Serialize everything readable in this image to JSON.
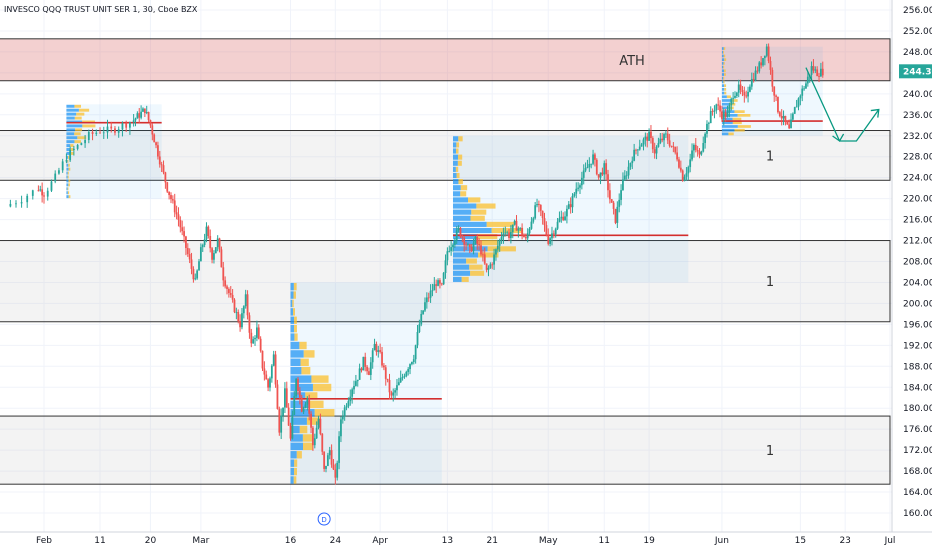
{
  "header": {
    "title": "INVESCO QQQ TRUST UNIT SER 1, 30, Cboe BZX"
  },
  "chart_data": {
    "type": "candlestick",
    "title": "INVESCO QQQ TRUST UNIT SER 1, 30, Cboe BZX",
    "ylim": [
      158,
      258
    ],
    "y_ticks": [
      160,
      164,
      168,
      172,
      176,
      180,
      184,
      188,
      192,
      196,
      200,
      204,
      208,
      212,
      216,
      220,
      224,
      228,
      232,
      236,
      240,
      244,
      248,
      252,
      256
    ],
    "x_ticks": [
      {
        "label": "Feb",
        "day": 31
      },
      {
        "label": "11",
        "day": 41
      },
      {
        "label": "20",
        "day": 50
      },
      {
        "label": "Mar",
        "day": 59
      },
      {
        "label": "16",
        "day": 75
      },
      {
        "label": "24",
        "day": 83
      },
      {
        "label": "Apr",
        "day": 91
      },
      {
        "label": "13",
        "day": 103
      },
      {
        "label": "21",
        "day": 111
      },
      {
        "label": "May",
        "day": 121
      },
      {
        "label": "11",
        "day": 131
      },
      {
        "label": "19",
        "day": 139
      },
      {
        "label": "Jun",
        "day": 152
      },
      {
        "label": "15",
        "day": 166
      },
      {
        "label": "23",
        "day": 174
      },
      {
        "label": "Jul",
        "day": 182
      }
    ],
    "x_range_days": [
      24,
      184
    ],
    "last_price": "244.30",
    "price_path": [
      [
        24,
        218.5
      ],
      [
        27,
        220
      ],
      [
        30,
        222
      ],
      [
        31,
        221
      ],
      [
        33,
        224
      ],
      [
        35,
        228
      ],
      [
        37,
        230
      ],
      [
        39,
        232
      ],
      [
        41,
        233
      ],
      [
        43,
        233
      ],
      [
        45,
        234
      ],
      [
        47,
        235
      ],
      [
        48,
        236
      ],
      [
        49,
        237
      ],
      [
        50,
        234
      ],
      [
        51,
        230
      ],
      [
        52,
        226
      ],
      [
        53,
        222
      ],
      [
        54,
        219
      ],
      [
        55,
        216
      ],
      [
        56,
        212
      ],
      [
        57,
        208
      ],
      [
        58,
        204
      ],
      [
        59,
        210
      ],
      [
        60,
        214
      ],
      [
        61,
        209
      ],
      [
        62,
        212
      ],
      [
        63,
        205
      ],
      [
        64,
        202
      ],
      [
        65,
        199
      ],
      [
        66,
        196
      ],
      [
        67,
        201
      ],
      [
        68,
        192
      ],
      [
        69,
        195
      ],
      [
        70,
        188
      ],
      [
        71,
        184
      ],
      [
        72,
        190
      ],
      [
        73,
        176
      ],
      [
        74,
        183
      ],
      [
        75,
        174
      ],
      [
        76,
        186
      ],
      [
        77,
        180
      ],
      [
        78,
        182
      ],
      [
        79,
        173
      ],
      [
        80,
        178
      ],
      [
        81,
        168
      ],
      [
        82,
        172
      ],
      [
        83,
        166
      ],
      [
        84,
        178
      ],
      [
        85,
        181
      ],
      [
        86,
        184
      ],
      [
        87,
        186
      ],
      [
        88,
        189
      ],
      [
        89,
        187
      ],
      [
        90,
        192
      ],
      [
        91,
        190
      ],
      [
        92,
        186
      ],
      [
        93,
        182
      ],
      [
        94,
        184
      ],
      [
        95,
        186
      ],
      [
        96,
        188
      ],
      [
        97,
        190
      ],
      [
        98,
        196
      ],
      [
        99,
        200
      ],
      [
        100,
        202
      ],
      [
        101,
        204
      ],
      [
        102,
        203
      ],
      [
        103,
        210
      ],
      [
        104,
        212
      ],
      [
        105,
        214
      ],
      [
        106,
        212
      ],
      [
        107,
        210
      ],
      [
        108,
        212
      ],
      [
        109,
        210
      ],
      [
        110,
        206
      ],
      [
        111,
        208
      ],
      [
        112,
        211
      ],
      [
        113,
        214
      ],
      [
        114,
        213
      ],
      [
        115,
        215
      ],
      [
        116,
        214
      ],
      [
        117,
        212
      ],
      [
        118,
        216
      ],
      [
        119,
        219
      ],
      [
        120,
        216
      ],
      [
        121,
        212
      ],
      [
        122,
        214
      ],
      [
        123,
        216
      ],
      [
        124,
        217
      ],
      [
        125,
        219
      ],
      [
        126,
        222
      ],
      [
        127,
        224
      ],
      [
        128,
        226
      ],
      [
        129,
        228
      ],
      [
        130,
        224
      ],
      [
        131,
        226
      ],
      [
        132,
        220
      ],
      [
        133,
        216
      ],
      [
        134,
        222
      ],
      [
        135,
        225
      ],
      [
        136,
        228
      ],
      [
        137,
        230
      ],
      [
        138,
        231
      ],
      [
        139,
        232
      ],
      [
        140,
        229
      ],
      [
        141,
        231
      ],
      [
        142,
        232
      ],
      [
        143,
        230
      ],
      [
        144,
        228
      ],
      [
        145,
        224
      ],
      [
        146,
        226
      ],
      [
        147,
        230
      ],
      [
        148,
        228
      ],
      [
        149,
        233
      ],
      [
        150,
        236
      ],
      [
        151,
        238
      ],
      [
        152,
        236
      ],
      [
        153,
        236
      ],
      [
        154,
        240
      ],
      [
        155,
        241
      ],
      [
        156,
        239
      ],
      [
        157,
        242
      ],
      [
        158,
        244
      ],
      [
        159,
        246
      ],
      [
        160,
        249
      ],
      [
        161,
        242
      ],
      [
        162,
        237
      ],
      [
        163,
        235
      ],
      [
        164,
        233
      ],
      [
        165,
        237
      ],
      [
        166,
        240
      ],
      [
        167,
        242
      ],
      [
        168,
        245
      ],
      [
        169,
        244
      ],
      [
        170,
        244.3
      ]
    ],
    "zones": [
      {
        "name": "ATH",
        "low": 242.5,
        "high": 250.5,
        "label": "ATH",
        "day_start": 22,
        "day_end": 186
      },
      {
        "name": "zone-1",
        "low": 223.5,
        "high": 233.0,
        "label": "1",
        "day_start": 22,
        "day_end": 186
      },
      {
        "name": "zone-2",
        "low": 196.5,
        "high": 212.0,
        "label": "1",
        "day_start": 22,
        "day_end": 186
      },
      {
        "name": "zone-3",
        "low": 165.5,
        "high": 178.5,
        "label": "1",
        "day_start": 22,
        "day_end": 186
      }
    ],
    "volume_profiles": [
      {
        "name": "vp-feb",
        "day_start": 35,
        "day_end": 52,
        "low": 220,
        "high": 238,
        "poc": 234.5
      },
      {
        "name": "vp-mar",
        "day_start": 75,
        "day_end": 102,
        "low": 165.5,
        "high": 204,
        "poc": 181.8
      },
      {
        "name": "vp-apr",
        "day_start": 104,
        "day_end": 146,
        "low": 204,
        "high": 232,
        "poc": 213
      },
      {
        "name": "vp-jun",
        "day_start": 152,
        "day_end": 170,
        "low": 232,
        "high": 249,
        "poc": 234.8
      }
    ],
    "projection": [
      [
        167,
        245
      ],
      [
        173,
        231
      ],
      [
        176,
        231
      ],
      [
        180,
        237
      ]
    ],
    "markers": [
      {
        "name": "dividend",
        "label": "D",
        "day": 81
      }
    ]
  }
}
